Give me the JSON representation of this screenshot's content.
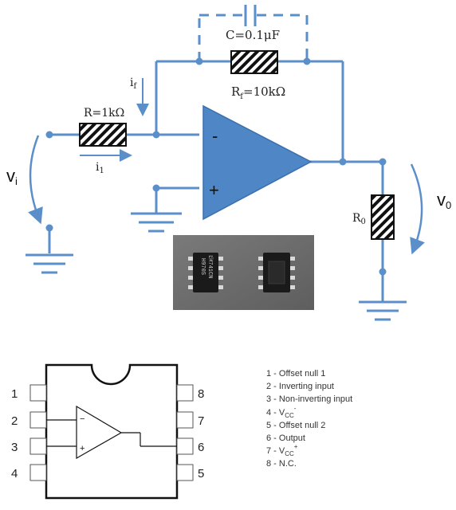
{
  "circuit": {
    "capacitor_label": "C=0.1μF",
    "feedback_resistor_label_main": "R",
    "feedback_resistor_label_sub": "f",
    "feedback_resistor_label_value": "=10kΩ",
    "input_resistor_label": "R=1kΩ",
    "feedback_current_main": "i",
    "feedback_current_sub": "f",
    "input_current_main": "i",
    "input_current_sub": "1",
    "input_voltage_main": "v",
    "input_voltage_sub": "i",
    "output_voltage_main": "v",
    "output_voltage_sub": "0",
    "load_resistor_main": "R",
    "load_resistor_sub": "0",
    "inverting_sign": "-",
    "noninverting_sign": "+",
    "wire_color": "#5b8fc9",
    "opamp_color": "#4f86c6"
  },
  "photo": {
    "chip1_marking_line1": "LM741CN",
    "chip1_marking_line2": "H970S"
  },
  "package": {
    "pins_left": [
      "1",
      "2",
      "3",
      "4"
    ],
    "pins_right": [
      "8",
      "7",
      "6",
      "5"
    ],
    "inverting_sign": "−",
    "noninverting_sign": "+"
  },
  "pin_legend": [
    {
      "main": "1 - Offset null 1",
      "sub": "",
      "sup": ""
    },
    {
      "main": "2 - Inverting input",
      "sub": "",
      "sup": ""
    },
    {
      "main": "3 - Non-inverting input",
      "sub": "",
      "sup": ""
    },
    {
      "main": "4 - V",
      "sub": "CC",
      "sup": "-"
    },
    {
      "main": "5 - Offset null 2",
      "sub": "",
      "sup": ""
    },
    {
      "main": "6 - Output",
      "sub": "",
      "sup": ""
    },
    {
      "main": "7 - V",
      "sub": "CC",
      "sup": "+"
    },
    {
      "main": "8 - N.C.",
      "sub": "",
      "sup": ""
    }
  ]
}
